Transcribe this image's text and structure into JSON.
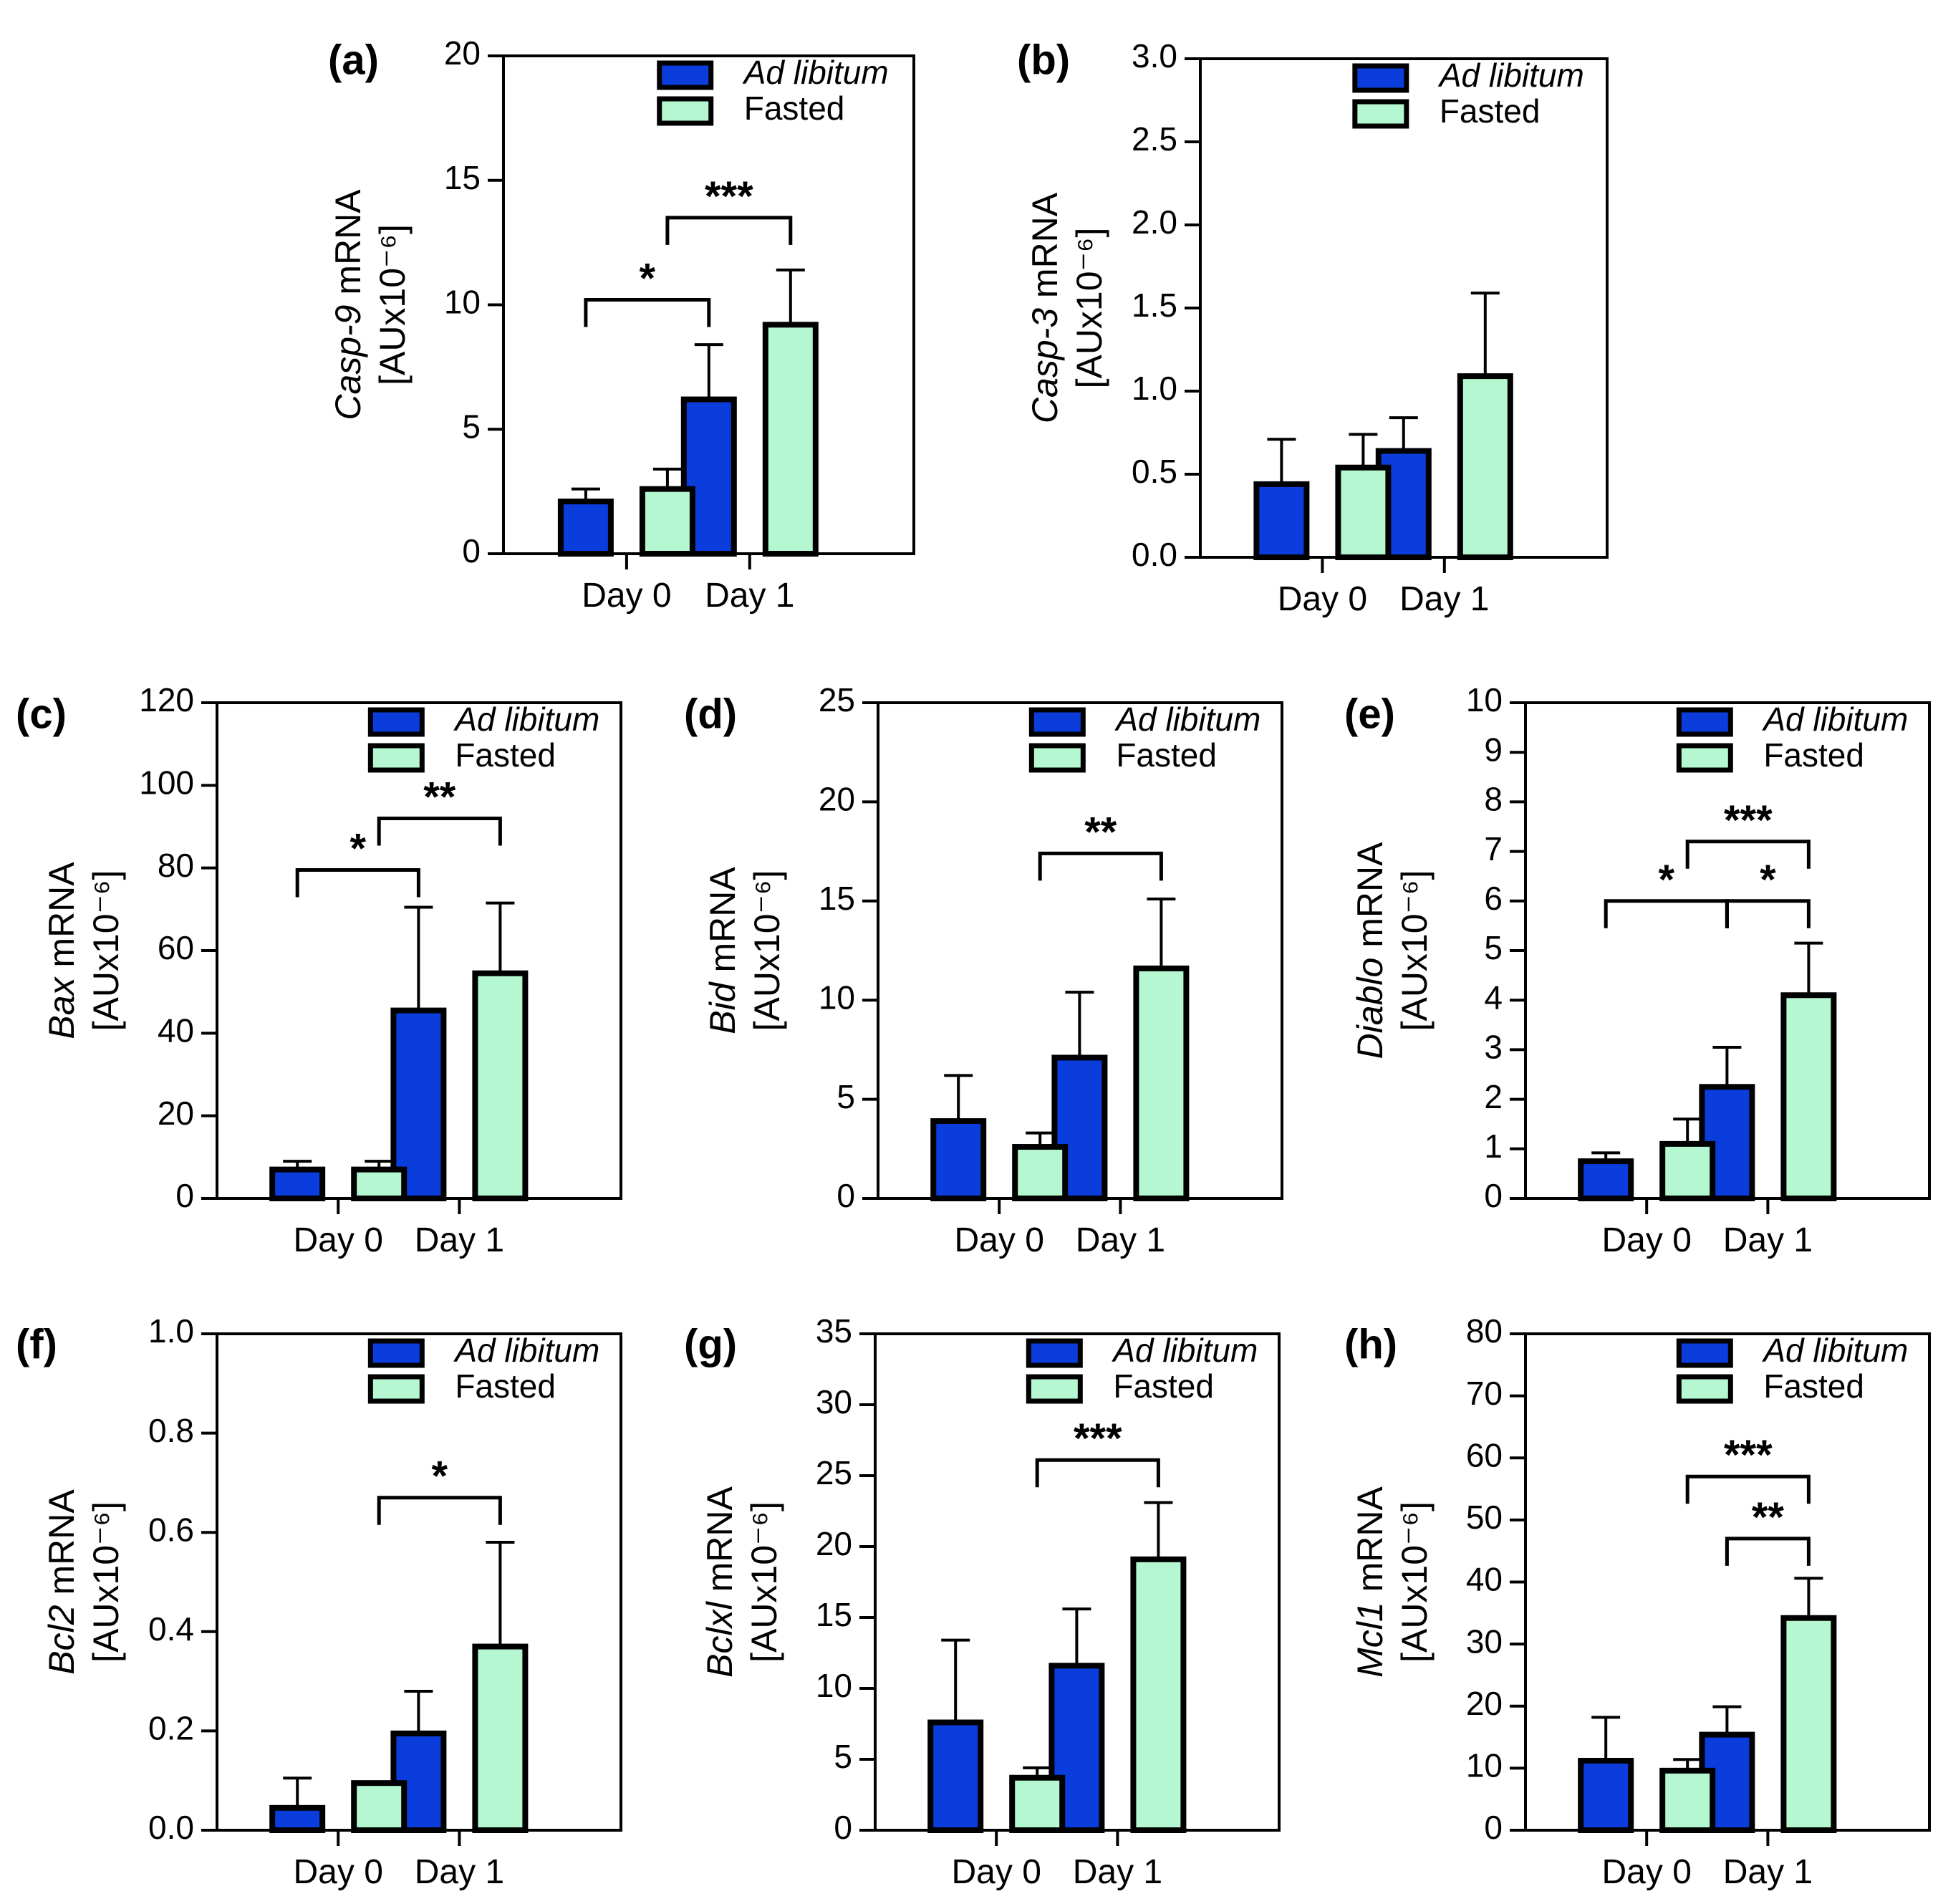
{
  "colors": {
    "ad_libitum": "#0a3ddb",
    "fasted": "#b5f7d0",
    "stroke": "#000000"
  },
  "legend": {
    "ad_libitum": "Ad libitum",
    "fasted": "Fasted"
  },
  "categories": [
    "Day 0",
    "Day 1"
  ],
  "chart_data": [
    {
      "id": "a",
      "panel_label": "(a)",
      "type": "bar",
      "gene": "Casp-9",
      "ylabel_suffix": " mRNA",
      "ylabel_units": "[AUx10⁻⁶]",
      "categories": [
        "Day 0",
        "Day 1"
      ],
      "ylim": [
        0,
        20
      ],
      "yticks": [
        "0",
        "5",
        "10",
        "15",
        "20"
      ],
      "tick_values": [
        0,
        5,
        10,
        15,
        20
      ],
      "series": [
        {
          "name": "Ad libitum",
          "values": [
            2.1,
            6.2
          ],
          "errors": [
            0.5,
            2.2
          ]
        },
        {
          "name": "Fasted",
          "values": [
            2.6,
            9.2
          ],
          "errors": [
            0.8,
            2.2
          ]
        }
      ],
      "significance": [
        {
          "from": [
            0,
            0
          ],
          "to": [
            1,
            0
          ],
          "label": "*",
          "level": 10.2
        },
        {
          "from": [
            0,
            1
          ],
          "to": [
            1,
            1
          ],
          "label": "***",
          "level": 13.5
        }
      ]
    },
    {
      "id": "b",
      "panel_label": "(b)",
      "type": "bar",
      "gene": "Casp-3",
      "ylabel_suffix": " mRNA",
      "ylabel_units": "[AUx10⁻⁶]",
      "categories": [
        "Day 0",
        "Day 1"
      ],
      "ylim": [
        0,
        3
      ],
      "yticks": [
        "0.0",
        "0.5",
        "1.0",
        "1.5",
        "2.0",
        "2.5",
        "3.0"
      ],
      "tick_values": [
        0,
        0.5,
        1,
        1.5,
        2,
        2.5,
        3
      ],
      "series": [
        {
          "name": "Ad libitum",
          "values": [
            0.44,
            0.64
          ],
          "errors": [
            0.27,
            0.2
          ]
        },
        {
          "name": "Fasted",
          "values": [
            0.54,
            1.09
          ],
          "errors": [
            0.2,
            0.5
          ]
        }
      ],
      "significance": []
    },
    {
      "id": "c",
      "panel_label": "(c)",
      "type": "bar",
      "gene": "Bax",
      "ylabel_suffix": " mRNA",
      "ylabel_units": "[AUx10⁻⁶]",
      "categories": [
        "Day 0",
        "Day 1"
      ],
      "ylim": [
        0,
        120
      ],
      "yticks": [
        "0",
        "20",
        "40",
        "60",
        "80",
        "100",
        "120"
      ],
      "tick_values": [
        0,
        20,
        40,
        60,
        80,
        100,
        120
      ],
      "series": [
        {
          "name": "Ad libitum",
          "values": [
            7,
            45.5
          ],
          "errors": [
            2,
            25
          ]
        },
        {
          "name": "Fasted",
          "values": [
            7,
            54.5
          ],
          "errors": [
            2,
            17
          ]
        }
      ],
      "significance": [
        {
          "from": [
            0,
            0
          ],
          "to": [
            1,
            0
          ],
          "label": "*",
          "level": 79.5
        },
        {
          "from": [
            0,
            1
          ],
          "to": [
            1,
            1
          ],
          "label": "**",
          "level": 92
        }
      ]
    },
    {
      "id": "d",
      "panel_label": "(d)",
      "type": "bar",
      "gene": "Bid",
      "ylabel_suffix": " mRNA",
      "ylabel_units": "[AUx10⁻⁶]",
      "categories": [
        "Day 0",
        "Day 1"
      ],
      "ylim": [
        0,
        25
      ],
      "yticks": [
        "0",
        "5",
        "10",
        "15",
        "20",
        "25"
      ],
      "tick_values": [
        0,
        5,
        10,
        15,
        20,
        25
      ],
      "series": [
        {
          "name": "Ad libitum",
          "values": [
            3.9,
            7.1
          ],
          "errors": [
            2.3,
            3.3
          ]
        },
        {
          "name": "Fasted",
          "values": [
            2.6,
            11.6
          ],
          "errors": [
            0.7,
            3.5
          ]
        }
      ],
      "significance": [
        {
          "from": [
            0,
            1
          ],
          "to": [
            1,
            1
          ],
          "label": "**",
          "level": 17.4
        }
      ]
    },
    {
      "id": "e",
      "panel_label": "(e)",
      "type": "bar",
      "gene": "Diablo",
      "ylabel_suffix": " mRNA",
      "ylabel_units": "[AUx10⁻⁶]",
      "categories": [
        "Day 0",
        "Day 1"
      ],
      "ylim": [
        0,
        10
      ],
      "yticks": [
        "0",
        "1",
        "2",
        "3",
        "4",
        "5",
        "6",
        "7",
        "8",
        "9",
        "10"
      ],
      "tick_values": [
        0,
        1,
        2,
        3,
        4,
        5,
        6,
        7,
        8,
        9,
        10
      ],
      "series": [
        {
          "name": "Ad libitum",
          "values": [
            0.75,
            2.25
          ],
          "errors": [
            0.17,
            0.8
          ]
        },
        {
          "name": "Fasted",
          "values": [
            1.1,
            4.1
          ],
          "errors": [
            0.5,
            1.05
          ]
        }
      ],
      "significance": [
        {
          "from": [
            0,
            0
          ],
          "to": [
            1,
            0
          ],
          "label": "*",
          "level": 6.0
        },
        {
          "from": [
            1,
            0
          ],
          "to": [
            1,
            1
          ],
          "label": "*",
          "level": 6.0
        },
        {
          "from": [
            0,
            1
          ],
          "to": [
            1,
            1
          ],
          "label": "***",
          "level": 7.2
        }
      ]
    },
    {
      "id": "f",
      "panel_label": "(f)",
      "type": "bar",
      "gene": "Bcl2",
      "ylabel_suffix": " mRNA",
      "ylabel_units": "[AUx10⁻⁶]",
      "categories": [
        "Day 0",
        "Day 1"
      ],
      "ylim": [
        0,
        1
      ],
      "yticks": [
        "0.0",
        "0.2",
        "0.4",
        "0.6",
        "0.8",
        "1.0"
      ],
      "tick_values": [
        0,
        0.2,
        0.4,
        0.6,
        0.8,
        1
      ],
      "series": [
        {
          "name": "Ad libitum",
          "values": [
            0.045,
            0.195
          ],
          "errors": [
            0.06,
            0.085
          ]
        },
        {
          "name": "Fasted",
          "values": [
            0.095,
            0.37
          ],
          "errors": [
            0.0,
            0.21
          ]
        }
      ],
      "significance": [
        {
          "from": [
            0,
            1
          ],
          "to": [
            1,
            1
          ],
          "label": "*",
          "level": 0.67
        }
      ]
    },
    {
      "id": "g",
      "panel_label": "(g)",
      "type": "bar",
      "gene": "Bclxl",
      "ylabel_suffix": " mRNA",
      "ylabel_units": "[AUx10⁻⁶]",
      "categories": [
        "Day 0",
        "Day 1"
      ],
      "ylim": [
        0,
        35
      ],
      "yticks": [
        "0",
        "5",
        "10",
        "15",
        "20",
        "25",
        "30",
        "35"
      ],
      "tick_values": [
        0,
        5,
        10,
        15,
        20,
        25,
        30,
        35
      ],
      "series": [
        {
          "name": "Ad libitum",
          "values": [
            7.6,
            11.6
          ],
          "errors": [
            5.8,
            4.0
          ]
        },
        {
          "name": "Fasted",
          "values": [
            3.7,
            19.1
          ],
          "errors": [
            0.7,
            4.0
          ]
        }
      ],
      "significance": [
        {
          "from": [
            0,
            1
          ],
          "to": [
            1,
            1
          ],
          "label": "***",
          "level": 26.1
        }
      ]
    },
    {
      "id": "h",
      "panel_label": "(h)",
      "type": "bar",
      "gene": "Mcl1",
      "ylabel_suffix": " mRNA",
      "ylabel_units": "[AUx10⁻⁶]",
      "categories": [
        "Day 0",
        "Day 1"
      ],
      "ylim": [
        0,
        80
      ],
      "yticks": [
        "0",
        "10",
        "20",
        "30",
        "40",
        "50",
        "60",
        "70",
        "80"
      ],
      "tick_values": [
        0,
        10,
        20,
        30,
        40,
        50,
        60,
        70,
        80
      ],
      "series": [
        {
          "name": "Ad libitum",
          "values": [
            11.2,
            15.4
          ],
          "errors": [
            7.0,
            4.5
          ]
        },
        {
          "name": "Fasted",
          "values": [
            9.6,
            34.2
          ],
          "errors": [
            1.8,
            6.4
          ]
        }
      ],
      "significance": [
        {
          "from": [
            1,
            0
          ],
          "to": [
            1,
            1
          ],
          "label": "**",
          "level": 47
        },
        {
          "from": [
            0,
            1
          ],
          "to": [
            1,
            1
          ],
          "label": "***",
          "level": 57
        }
      ]
    }
  ]
}
